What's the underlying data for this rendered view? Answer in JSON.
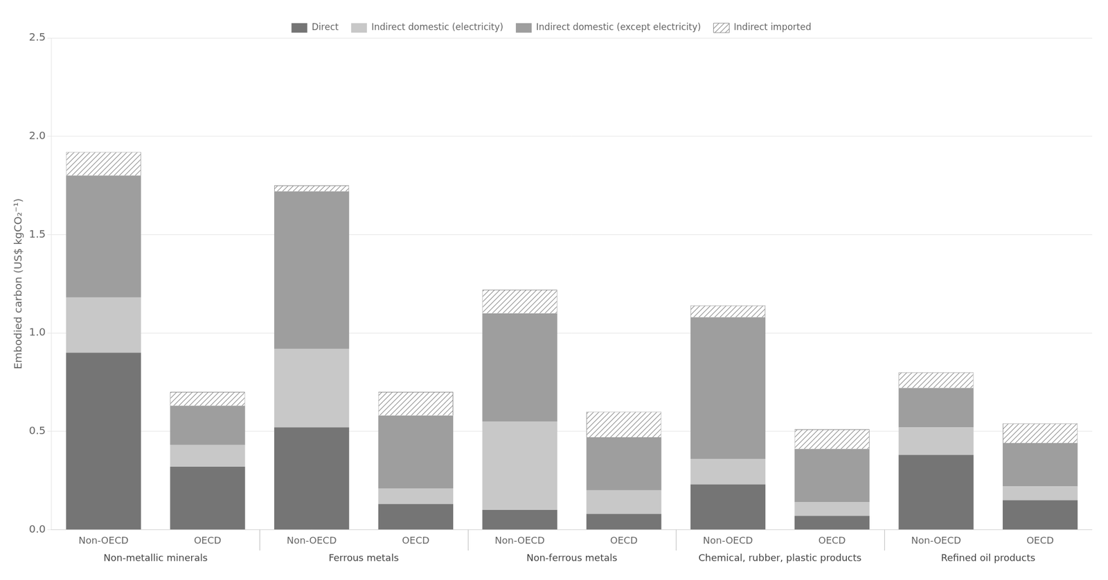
{
  "chart_data": {
    "type": "bar",
    "stacked": true,
    "categories": [
      "Non-OECD",
      "OECD",
      "Non-OECD",
      "OECD",
      "Non-OECD",
      "OECD",
      "Non-OECD",
      "OECD",
      "Non-OECD",
      "OECD"
    ],
    "groups": [
      "Non-metallic minerals",
      "Ferrous metals",
      "Non-ferrous metals",
      "Chemical, rubber, plastic products",
      "Refined oil products"
    ],
    "series": [
      {
        "name": "Direct",
        "color": "#757575",
        "values": [
          0.9,
          0.32,
          0.52,
          0.13,
          0.1,
          0.08,
          0.23,
          0.07,
          0.38,
          0.15
        ]
      },
      {
        "name": "Indirect domestic (electricity)",
        "color": "#c8c8c8",
        "values": [
          0.28,
          0.11,
          0.4,
          0.08,
          0.45,
          0.12,
          0.13,
          0.07,
          0.14,
          0.07
        ]
      },
      {
        "name": "Indirect domestic (except electricity)",
        "color": "#9e9e9e",
        "values": [
          0.62,
          0.2,
          0.8,
          0.37,
          0.55,
          0.27,
          0.72,
          0.27,
          0.2,
          0.22
        ]
      },
      {
        "name": "Indirect imported",
        "color": "#888888",
        "values": [
          0.12,
          0.07,
          0.03,
          0.12,
          0.12,
          0.13,
          0.06,
          0.1,
          0.08,
          0.1
        ]
      }
    ],
    "ylabel": "Embodied carbon (US$ kgCO₂⁻¹)",
    "ylim": [
      0,
      2.5
    ],
    "yticks": [
      {
        "value": 0,
        "label": "0.0"
      },
      0.5,
      {
        "value": 1.0,
        "label": "1.0"
      },
      1.5,
      {
        "value": 2.0,
        "label": "2.0"
      },
      2.5
    ],
    "grid": true,
    "legend": "top"
  }
}
